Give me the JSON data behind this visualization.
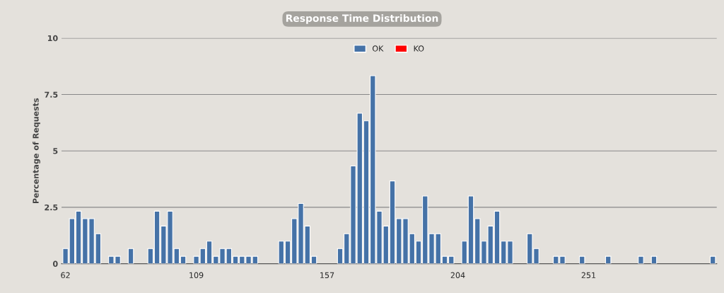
{
  "chart_data": {
    "type": "bar",
    "title": "Response Time Distribution",
    "ylabel": "Percentage of Requests",
    "categories": [
      "62",
      null,
      null,
      null,
      null,
      null,
      null,
      null,
      null,
      null,
      null,
      null,
      null,
      null,
      null,
      null,
      null,
      null,
      null,
      null,
      "109",
      null,
      null,
      null,
      null,
      null,
      null,
      null,
      null,
      null,
      null,
      null,
      null,
      null,
      null,
      null,
      null,
      null,
      null,
      null,
      "157",
      null,
      null,
      null,
      null,
      null,
      null,
      null,
      null,
      null,
      null,
      null,
      null,
      null,
      null,
      null,
      null,
      null,
      null,
      null,
      "204",
      null,
      null,
      null,
      null,
      null,
      null,
      null,
      null,
      null,
      null,
      null,
      null,
      null,
      null,
      null,
      null,
      null,
      null,
      null,
      "251",
      null,
      null,
      null,
      null,
      null,
      null,
      null,
      null,
      null,
      null,
      null,
      null,
      null,
      null,
      null,
      null,
      null,
      null,
      null
    ],
    "series": [
      {
        "name": "OK",
        "color": "#4572a7",
        "values": [
          0.67,
          2.0,
          2.33,
          2.0,
          2.0,
          1.33,
          0,
          0.33,
          0.33,
          0,
          0.67,
          0,
          0,
          0.67,
          2.33,
          1.67,
          2.33,
          0.67,
          0.33,
          0,
          0.33,
          0.67,
          1.0,
          0.33,
          0.67,
          0.67,
          0.33,
          0.33,
          0.33,
          0.33,
          0,
          0,
          0,
          1.0,
          1.0,
          2.0,
          2.67,
          1.67,
          0.33,
          0,
          0,
          0,
          0.67,
          1.33,
          4.33,
          6.67,
          6.33,
          8.33,
          2.33,
          1.67,
          3.67,
          2.0,
          2.0,
          1.33,
          1.0,
          3.0,
          1.33,
          1.33,
          0.33,
          0.33,
          0,
          1.0,
          3.0,
          2.0,
          1.0,
          1.67,
          2.33,
          1.0,
          1.0,
          0,
          0,
          1.33,
          0.67,
          0,
          0,
          0.33,
          0.33,
          0,
          0,
          0.33,
          0,
          0,
          0,
          0.33,
          0,
          0,
          0,
          0,
          0.33,
          0,
          0.33,
          0,
          0,
          0,
          0,
          0,
          0,
          0,
          0,
          0.33
        ]
      },
      {
        "name": "KO",
        "color": "#ff0000",
        "values": [
          null,
          null,
          null,
          null,
          null,
          null,
          null,
          null,
          null,
          null,
          null,
          null,
          null,
          null,
          null,
          null,
          null,
          null,
          null,
          null,
          null,
          null,
          null,
          null,
          null,
          null,
          null,
          null,
          null,
          null,
          null,
          null,
          null,
          null,
          null,
          null,
          null,
          null,
          null,
          null,
          null,
          null,
          null,
          null,
          null,
          null,
          null,
          null,
          null,
          null,
          null,
          null,
          null,
          null,
          null,
          null,
          null,
          null,
          null,
          null,
          null,
          null,
          null,
          null,
          null,
          null,
          null,
          null,
          null,
          null,
          null,
          null,
          null,
          null,
          null,
          null,
          null,
          null,
          null,
          null,
          null,
          null,
          null,
          null,
          null,
          null,
          null,
          null,
          null,
          null,
          null,
          null,
          null,
          null,
          null,
          null,
          null,
          null,
          null,
          null
        ]
      }
    ],
    "ylim": [
      0,
      10
    ],
    "yticks": [
      0,
      2.5,
      5,
      7.5,
      10
    ],
    "grid": "y",
    "legend": "top"
  }
}
